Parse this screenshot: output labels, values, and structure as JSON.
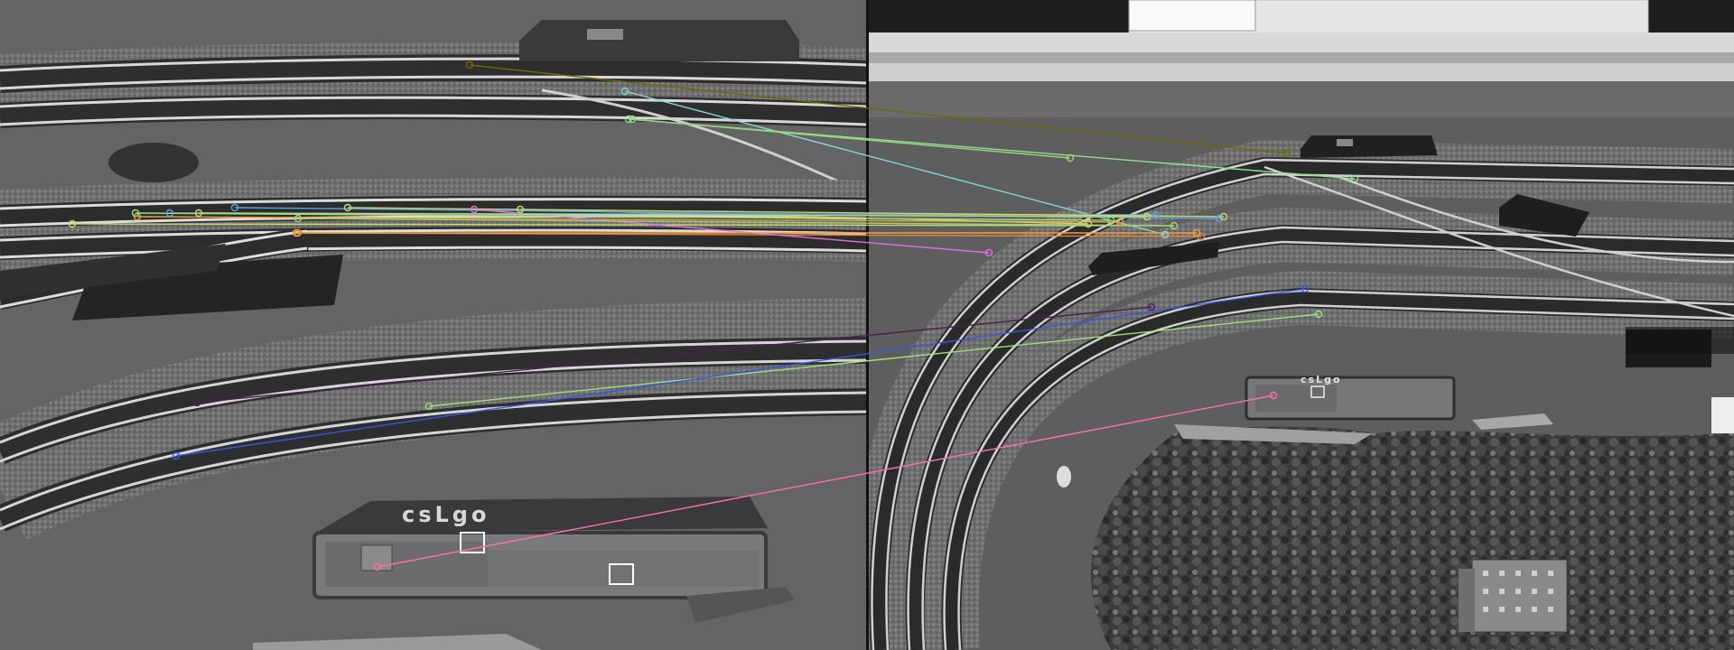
{
  "scene": {
    "left_view": {
      "locomotive_lettering": "csLgo"
    },
    "right_view": {
      "locomotive_lettering": "csLgo"
    }
  },
  "colors": {
    "match_palette": [
      "#6b6b00",
      "#7fd8d8",
      "#8fe08f",
      "#9ad37a",
      "#c8d86a",
      "#f0a030",
      "#e08040",
      "#d0d070",
      "#5aa0e0",
      "#e070e0",
      "#ff6fb0",
      "#3a55e0",
      "#4a2050",
      "#a0e07a",
      "#e090c0",
      "#40c060"
    ]
  }
}
